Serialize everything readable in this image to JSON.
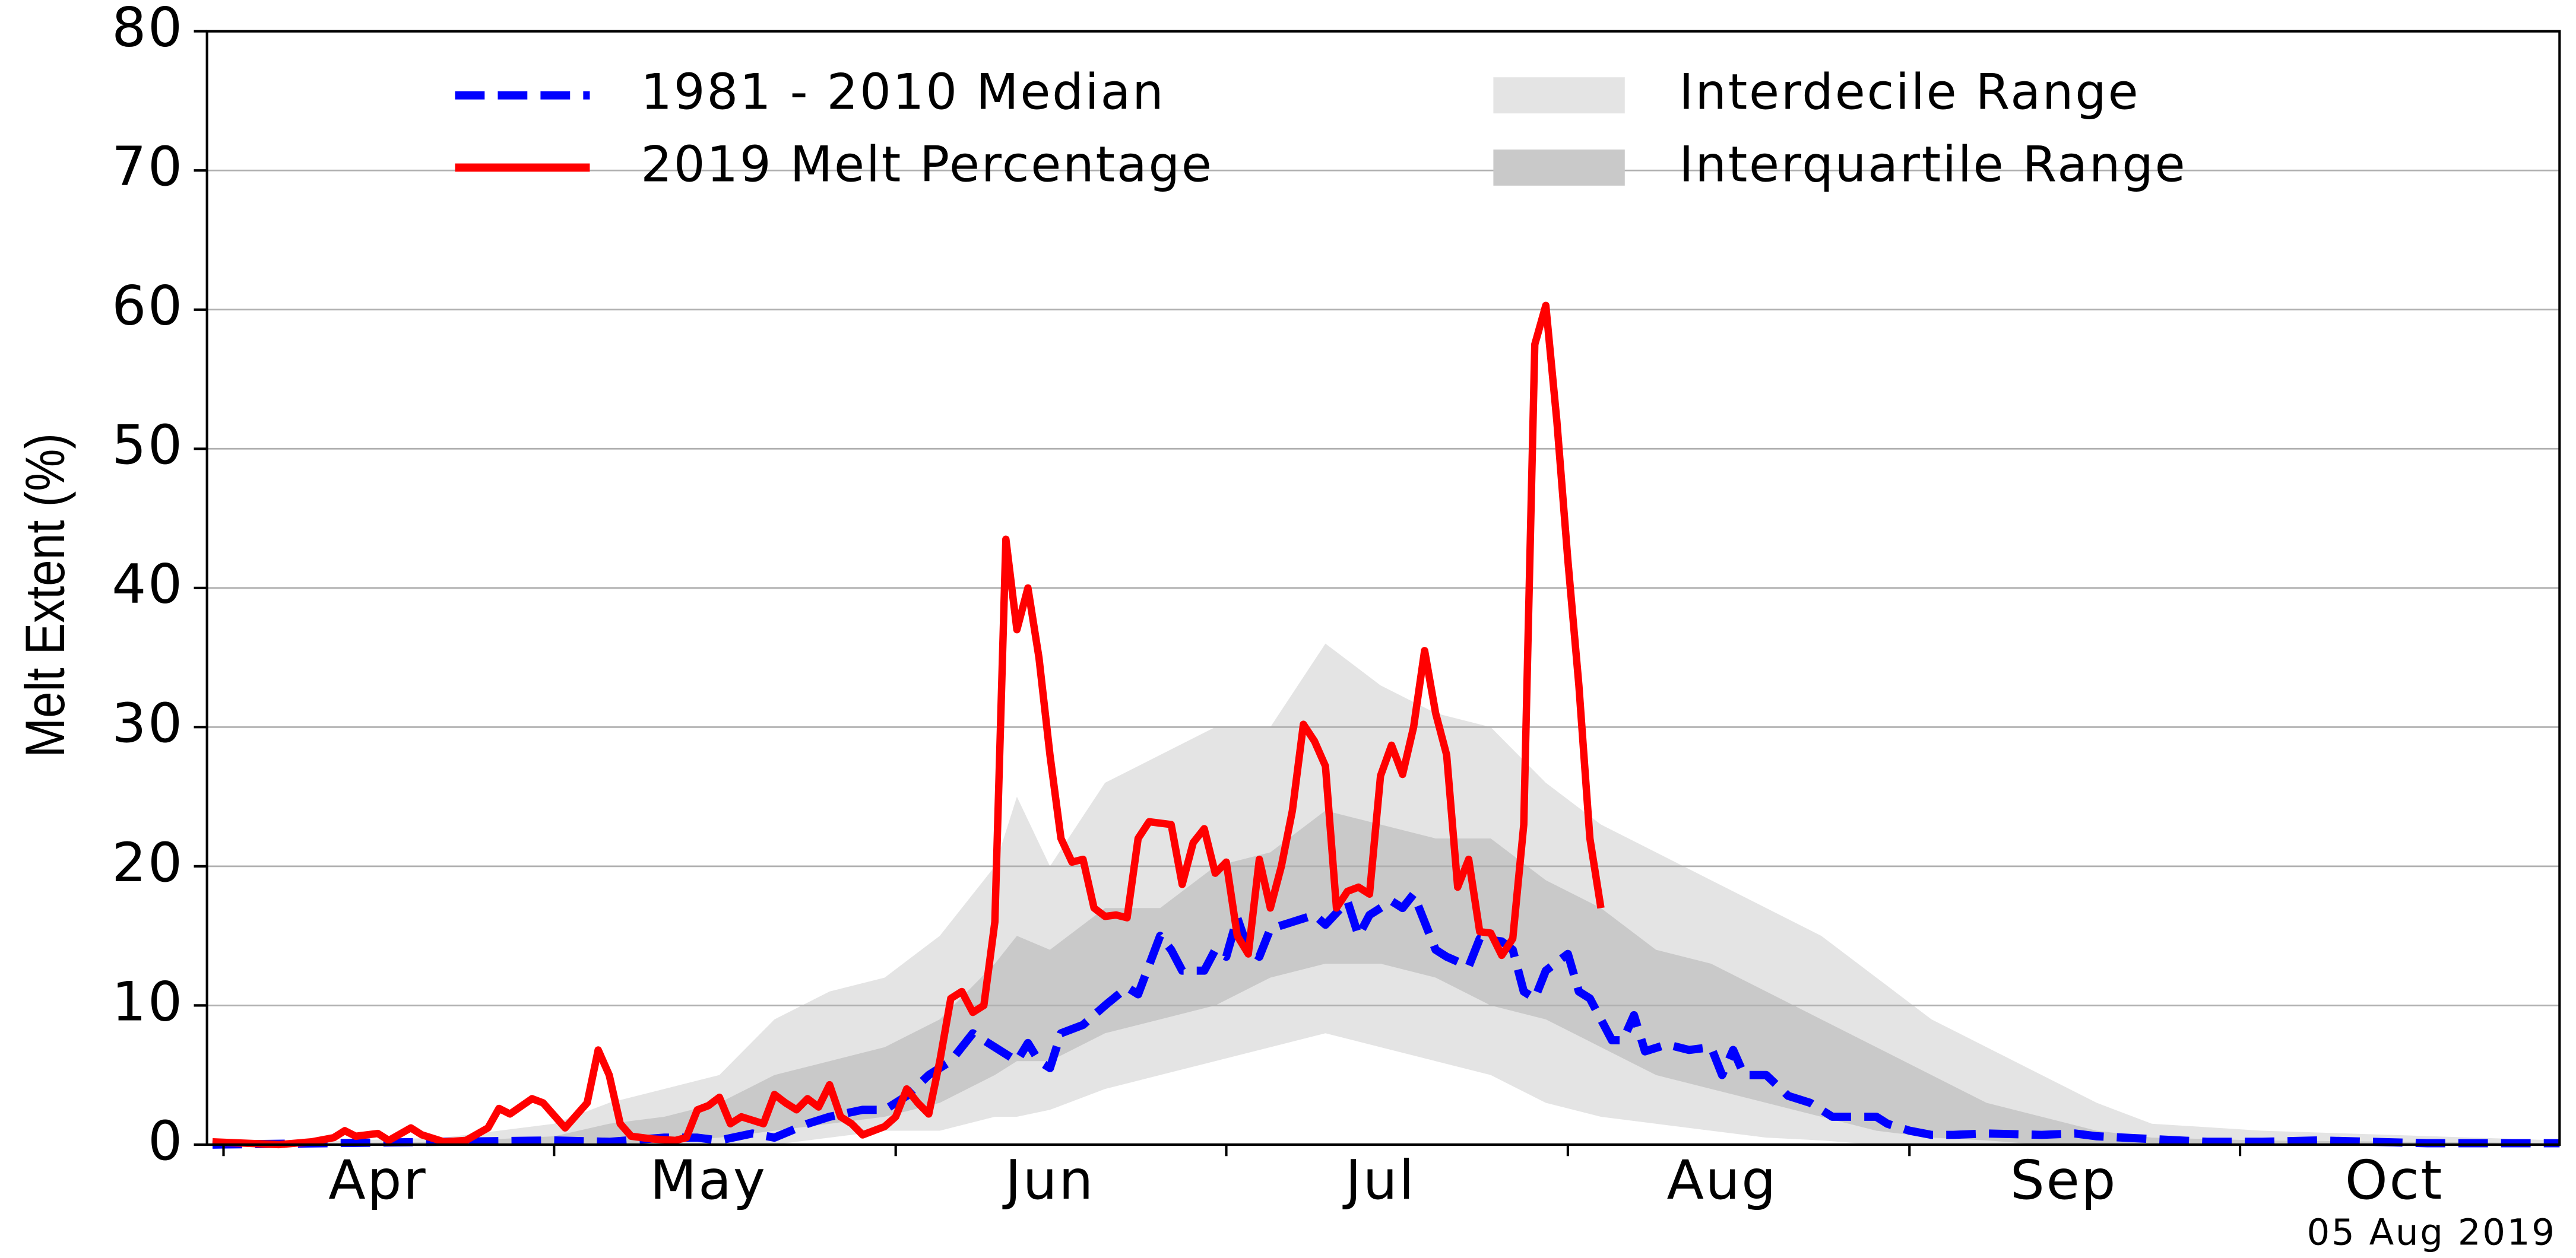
{
  "chart_data": {
    "type": "line",
    "y_label": "Melt Extent (%)",
    "annotation": "05 Aug 2019",
    "legend": "upper center",
    "grid": true,
    "xlim": [
      -1.5,
      212
    ],
    "ylim": [
      0,
      80
    ],
    "yticks": [
      0,
      10,
      20,
      30,
      40,
      50,
      60,
      70,
      80
    ],
    "xticks": [
      {
        "value": 14,
        "label": "Apr"
      },
      {
        "value": 44,
        "label": "May"
      },
      {
        "value": 75,
        "label": "Jun"
      },
      {
        "value": 105,
        "label": "Jul"
      },
      {
        "value": 136,
        "label": "Aug"
      },
      {
        "value": 167,
        "label": "Sep"
      },
      {
        "value": 197,
        "label": "Oct"
      }
    ],
    "xminor_ticks": [
      0,
      30,
      61,
      91,
      122,
      153,
      183
    ],
    "series": [
      {
        "name": "1981 - 2010 Median",
        "color": "#0000ff",
        "style": "dashed",
        "x": [
          -1,
          30,
          35,
          40,
          43,
          45,
          48,
          50,
          53,
          55,
          58,
          60,
          62,
          64,
          66,
          68,
          70,
          72,
          73,
          74,
          75,
          76,
          78,
          80,
          82,
          83,
          85,
          86,
          87,
          89,
          90,
          91,
          92,
          93,
          94,
          95,
          97,
          99,
          100,
          102,
          103,
          104,
          106,
          107,
          108,
          110,
          111,
          113,
          114,
          116,
          117,
          118,
          119,
          120,
          122,
          123,
          124,
          126,
          127,
          128,
          129,
          131,
          133,
          135,
          136,
          137,
          138,
          140,
          142,
          144,
          146,
          150,
          151,
          153,
          155,
          157,
          160,
          165,
          168,
          170,
          175,
          180,
          185,
          190,
          195,
          200,
          212
        ],
        "values": [
          0,
          0.3,
          0.2,
          0.5,
          0.5,
          0.3,
          0.8,
          0.5,
          1.5,
          2,
          2.5,
          2.5,
          3.5,
          5,
          6,
          8,
          7,
          6,
          7.3,
          6,
          5.5,
          8,
          8.6,
          10,
          11.3,
          10.8,
          15,
          14,
          12.5,
          12.5,
          14,
          13.5,
          16.3,
          14,
          13.5,
          15.5,
          16,
          16.5,
          15.8,
          17.5,
          15,
          16.5,
          17.5,
          17,
          18,
          14,
          13.5,
          12.8,
          14.8,
          14.6,
          14,
          11,
          10.5,
          12.5,
          13.7,
          11,
          10.5,
          7.5,
          7.5,
          9.3,
          6.7,
          7.2,
          6.8,
          7,
          5,
          6.8,
          5,
          5,
          3.5,
          3,
          2,
          2,
          1.5,
          1,
          0.7,
          0.7,
          0.8,
          0.7,
          0.8,
          0.6,
          0.4,
          0.2,
          0.2,
          0.3,
          0.2,
          0.1,
          0.1
        ]
      },
      {
        "name": "2019 Melt Percentage",
        "color": "#ff0000",
        "style": "solid",
        "x": [
          -1,
          5,
          8,
          10,
          11,
          12,
          14,
          15,
          17,
          18,
          20,
          22,
          24,
          25,
          26,
          28,
          29,
          31,
          33,
          34,
          35,
          36,
          37,
          39,
          41,
          42,
          43,
          44,
          45,
          46,
          47,
          49,
          50,
          51,
          52,
          53,
          54,
          55,
          56,
          57,
          58,
          60,
          61,
          62,
          63,
          64,
          65,
          66,
          67,
          68,
          69,
          70,
          71,
          72,
          73,
          74,
          75,
          76,
          77,
          78,
          79,
          80,
          81,
          82,
          83,
          84,
          85,
          86,
          87,
          88,
          89,
          90,
          91,
          92,
          93,
          94,
          95,
          96,
          97,
          98,
          99,
          100,
          101,
          102,
          103,
          104,
          105,
          106,
          107,
          108,
          109,
          110,
          111,
          112,
          113,
          114,
          115,
          116,
          117,
          118,
          119,
          120,
          121,
          122,
          123,
          124,
          125
        ],
        "values": [
          0.2,
          0,
          0.2,
          0.5,
          1,
          0.6,
          0.8,
          0.3,
          1.2,
          0.7,
          0.2,
          0.3,
          1.2,
          2.6,
          2.2,
          3.3,
          3,
          1.2,
          3,
          6.8,
          5,
          1.5,
          0.6,
          0.4,
          0.3,
          0.5,
          2.5,
          2.8,
          3.4,
          1.5,
          2,
          1.5,
          3.6,
          3,
          2.5,
          3.3,
          2.7,
          4.3,
          2,
          1.5,
          0.7,
          1.3,
          2,
          4,
          3,
          2.2,
          6,
          10.5,
          11,
          9.5,
          10,
          16,
          43.5,
          37,
          40,
          35,
          28,
          22,
          20.3,
          20.5,
          17,
          16.4,
          16.5,
          16.3,
          22,
          23.2,
          23.1,
          23,
          18.7,
          21.7,
          22.7,
          19.5,
          20.3,
          15,
          13.7,
          20.5,
          17,
          20,
          24,
          30.2,
          29,
          27.2,
          17,
          18.2,
          18.5,
          18,
          26.5,
          28.7,
          26.6,
          30,
          35.5,
          31,
          28,
          18.5,
          20.5,
          15.3,
          15.2,
          13.6,
          14.8,
          23,
          57.5,
          60.3,
          52,
          42,
          33,
          22,
          17
        ]
      },
      {
        "name": "Interdecile Range",
        "color": "#e4e4e4",
        "style": "band",
        "x": [
          -1,
          20,
          30,
          35,
          40,
          45,
          50,
          55,
          60,
          65,
          70,
          72,
          75,
          80,
          85,
          90,
          95,
          100,
          105,
          110,
          115,
          120,
          125,
          130,
          135,
          140,
          145,
          150,
          155,
          160,
          165,
          170,
          175,
          185,
          212
        ],
        "values": [
          0,
          0.5,
          1.5,
          3,
          4,
          5,
          9,
          11,
          12,
          15,
          20,
          25,
          20,
          26,
          28,
          30,
          30,
          36,
          33,
          31,
          30,
          26,
          23,
          21,
          19,
          17,
          15,
          12,
          9,
          7,
          5,
          3,
          1.5,
          1,
          0.3
        ],
        "lower": [
          0,
          0,
          0,
          0,
          0,
          0,
          0,
          0.5,
          1,
          1,
          2,
          2,
          2.5,
          4,
          5,
          6,
          7,
          8,
          7,
          6,
          5,
          3,
          2,
          1.5,
          1,
          0.5,
          0.3,
          0,
          0,
          0,
          0,
          0,
          0,
          0,
          0
        ]
      },
      {
        "name": "Interquartile Range",
        "color": "#c9c9c9",
        "style": "band",
        "x": [
          -1,
          20,
          30,
          35,
          40,
          45,
          50,
          55,
          60,
          65,
          70,
          72,
          75,
          80,
          85,
          90,
          95,
          100,
          105,
          110,
          115,
          120,
          125,
          130,
          135,
          140,
          145,
          150,
          155,
          160,
          165,
          170,
          175,
          185,
          212
        ],
        "values": [
          0,
          0.2,
          0.6,
          1.5,
          2,
          3,
          5,
          6,
          7,
          9,
          13,
          15,
          14,
          17,
          17,
          20,
          21,
          24,
          23,
          22,
          22,
          19,
          17,
          14,
          13,
          11,
          9,
          7,
          5,
          3,
          2,
          1,
          0.5,
          0.3,
          0.1
        ],
        "lower": [
          0,
          0,
          0,
          0,
          0.2,
          0.5,
          1,
          1.5,
          2,
          3,
          5,
          6,
          6,
          8,
          9,
          10,
          12,
          13,
          13,
          12,
          10,
          9,
          7,
          5,
          4,
          3,
          2,
          1,
          0.5,
          0.3,
          0,
          0,
          0,
          0,
          0
        ]
      }
    ]
  }
}
